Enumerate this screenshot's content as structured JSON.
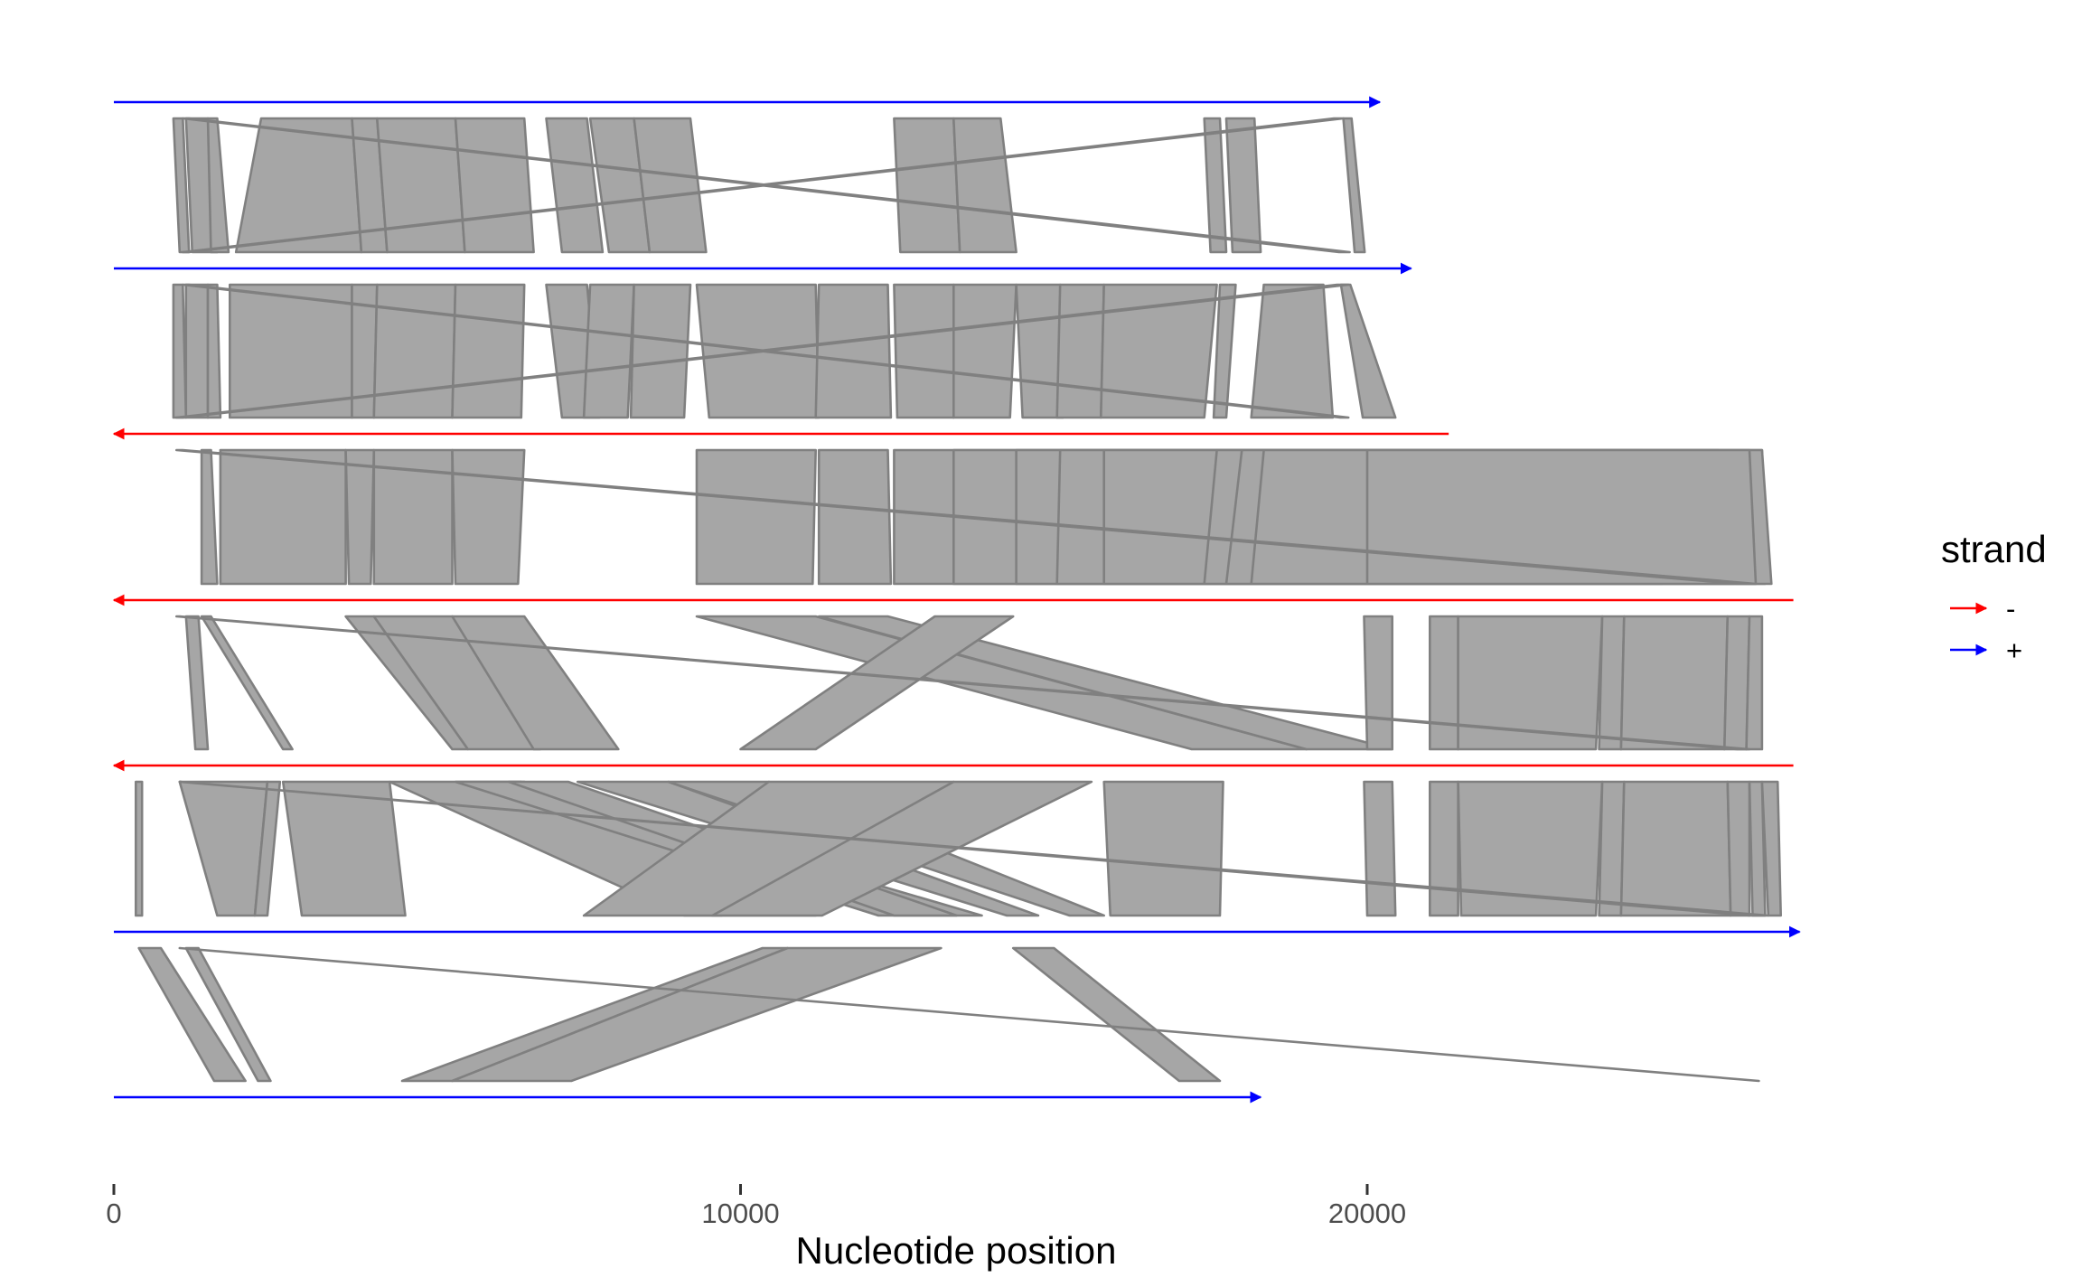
{
  "chart_data": {
    "type": "genome-synteny-comparison",
    "xlabel": "Nucleotide position",
    "x_ticks": [
      0,
      10000,
      20000
    ],
    "xlim": [
      0,
      27600
    ],
    "grid": false,
    "legend": {
      "title": "strand",
      "position": "right",
      "entries": [
        {
          "label": "-",
          "color": "#ff0000"
        },
        {
          "label": "+",
          "color": "#0000ff"
        }
      ]
    },
    "link_color": "#808080",
    "link_fill": "#a6a6a6",
    "genomes": [
      {
        "strand": "+",
        "start": 0,
        "end": 20200
      },
      {
        "strand": "+",
        "start": 0,
        "end": 20700
      },
      {
        "strand": "-",
        "start": 0,
        "end": 21300
      },
      {
        "strand": "-",
        "start": 0,
        "end": 26800
      },
      {
        "strand": "-",
        "start": 0,
        "end": 26800
      },
      {
        "strand": "+",
        "start": 0,
        "end": 26900
      },
      {
        "strand": "+",
        "start": 0,
        "end": 18300
      }
    ],
    "links": [
      [
        [
          950,
          1100,
          1050,
          1200
        ],
        [
          1150,
          1500,
          1250,
          1650
        ],
        [
          1500,
          1650,
          1550,
          1830
        ],
        [
          2350,
          3800,
          1950,
          3950
        ],
        [
          3800,
          4200,
          3950,
          4360
        ],
        [
          4200,
          5450,
          4360,
          5600
        ],
        [
          5450,
          6550,
          5600,
          6700
        ],
        [
          6900,
          7550,
          7150,
          7800
        ],
        [
          7600,
          8300,
          7900,
          8550
        ],
        [
          8300,
          9200,
          8550,
          9450
        ],
        [
          12450,
          13400,
          12550,
          13500
        ],
        [
          13400,
          14150,
          13500,
          14400
        ],
        [
          17400,
          17650,
          17500,
          17750
        ],
        [
          17750,
          18200,
          17850,
          18300
        ],
        [
          19620,
          19750,
          19800,
          19960
        ],
        [
          1100,
          1200,
          19550,
          19720
        ],
        [
          19470,
          19620,
          1100,
          1200
        ]
      ],
      [
        [
          950,
          1100,
          950,
          1150
        ],
        [
          1150,
          1500,
          1150,
          1500
        ],
        [
          1500,
          1650,
          1500,
          1700
        ],
        [
          1850,
          3800,
          1850,
          3800
        ],
        [
          3800,
          4200,
          3800,
          4150
        ],
        [
          4200,
          5450,
          4150,
          5400
        ],
        [
          5450,
          6550,
          5400,
          6500
        ],
        [
          6900,
          7550,
          7150,
          7750
        ],
        [
          7600,
          8300,
          7500,
          8200
        ],
        [
          8300,
          9200,
          8250,
          9100
        ],
        [
          9300,
          11200,
          9500,
          11250
        ],
        [
          11250,
          12350,
          11200,
          12400
        ],
        [
          12450,
          13400,
          12500,
          13400
        ],
        [
          13400,
          14400,
          13400,
          14300
        ],
        [
          14400,
          15100,
          14500,
          15150
        ],
        [
          15100,
          15800,
          15050,
          15750
        ],
        [
          15800,
          17600,
          15750,
          17400
        ],
        [
          17650,
          17900,
          17550,
          17750
        ],
        [
          18350,
          19300,
          18150,
          19450
        ],
        [
          19580,
          19730,
          19930,
          20450
        ],
        [
          1100,
          1200,
          19570,
          19700
        ],
        [
          19520,
          19700,
          1000,
          1100
        ]
      ],
      [
        [
          1400,
          1550,
          1400,
          1650
        ],
        [
          1700,
          3700,
          1700,
          3700
        ],
        [
          3700,
          4150,
          3750,
          4100
        ],
        [
          4150,
          5400,
          4150,
          5400
        ],
        [
          5400,
          6550,
          5450,
          6450
        ],
        [
          9300,
          11200,
          9300,
          11150
        ],
        [
          11250,
          12350,
          11250,
          12400
        ],
        [
          12450,
          19600,
          12450,
          20200
        ],
        [
          13400,
          21150,
          13400,
          21050
        ],
        [
          14400,
          22350,
          14400,
          22550
        ],
        [
          15100,
          23100,
          15050,
          23650
        ],
        [
          15800,
          24400,
          15800,
          24700
        ],
        [
          17600,
          25600,
          17400,
          25850
        ],
        [
          18000,
          26300,
          17750,
          26350
        ],
        [
          18350,
          26300,
          18150,
          26450
        ],
        [
          20000,
          26100,
          20000,
          26200
        ],
        [
          1000,
          1100,
          25900,
          26200
        ]
      ],
      [
        [
          1150,
          1350,
          1300,
          1500
        ],
        [
          1400,
          1550,
          2700,
          2850
        ],
        [
          3700,
          4150,
          5400,
          5650
        ],
        [
          4150,
          5400,
          5650,
          6800
        ],
        [
          5400,
          6550,
          6700,
          8050
        ],
        [
          9300,
          11200,
          17200,
          19030
        ],
        [
          11250,
          12350,
          19030,
          20400
        ],
        [
          13100,
          14350,
          10000,
          11200
        ],
        [
          19950,
          20400,
          20000,
          20400
        ],
        [
          21000,
          21450,
          21000,
          21450
        ],
        [
          21450,
          23750,
          21450,
          23650
        ],
        [
          23750,
          24100,
          23700,
          24050
        ],
        [
          24100,
          25750,
          24050,
          25700
        ],
        [
          25750,
          26100,
          25700,
          26050
        ],
        [
          26100,
          26300,
          26050,
          26300
        ],
        [
          1000,
          1050,
          25900,
          26100
        ]
      ],
      [
        [
          350,
          450,
          350,
          450
        ],
        [
          1050,
          2450,
          1650,
          2250
        ],
        [
          2450,
          2650,
          2250,
          2450
        ],
        [
          2700,
          4400,
          3000,
          4650
        ],
        [
          4400,
          6500,
          9100,
          11200
        ],
        [
          5450,
          6550,
          12200,
          13850
        ],
        [
          6300,
          7250,
          12450,
          13450
        ],
        [
          7400,
          8850,
          14250,
          14750
        ],
        [
          8850,
          10450,
          15250,
          15800
        ],
        [
          10450,
          13400,
          7500,
          9700
        ],
        [
          13400,
          15600,
          9550,
          11300
        ],
        [
          15800,
          17700,
          15900,
          17650
        ],
        [
          19950,
          20400,
          20000,
          20450
        ],
        [
          21000,
          21450,
          21000,
          21450
        ],
        [
          21450,
          23750,
          21500,
          23650
        ],
        [
          23750,
          24100,
          23700,
          24050
        ],
        [
          24100,
          25750,
          24050,
          25800
        ],
        [
          25750,
          26100,
          25800,
          26100
        ],
        [
          26100,
          26300,
          26150,
          26350
        ],
        [
          1050,
          1050,
          26100,
          26400
        ],
        [
          26300,
          26550,
          26400,
          26600
        ]
      ],
      [
        [
          400,
          750,
          1600,
          2100
        ],
        [
          1150,
          1350,
          2300,
          2500
        ],
        [
          10350,
          10750,
          4600,
          5400
        ],
        [
          10750,
          13200,
          5400,
          7300
        ],
        [
          14350,
          15000,
          17000,
          17650
        ],
        [
          1050,
          1050,
          26250,
          26250
        ]
      ]
    ]
  }
}
